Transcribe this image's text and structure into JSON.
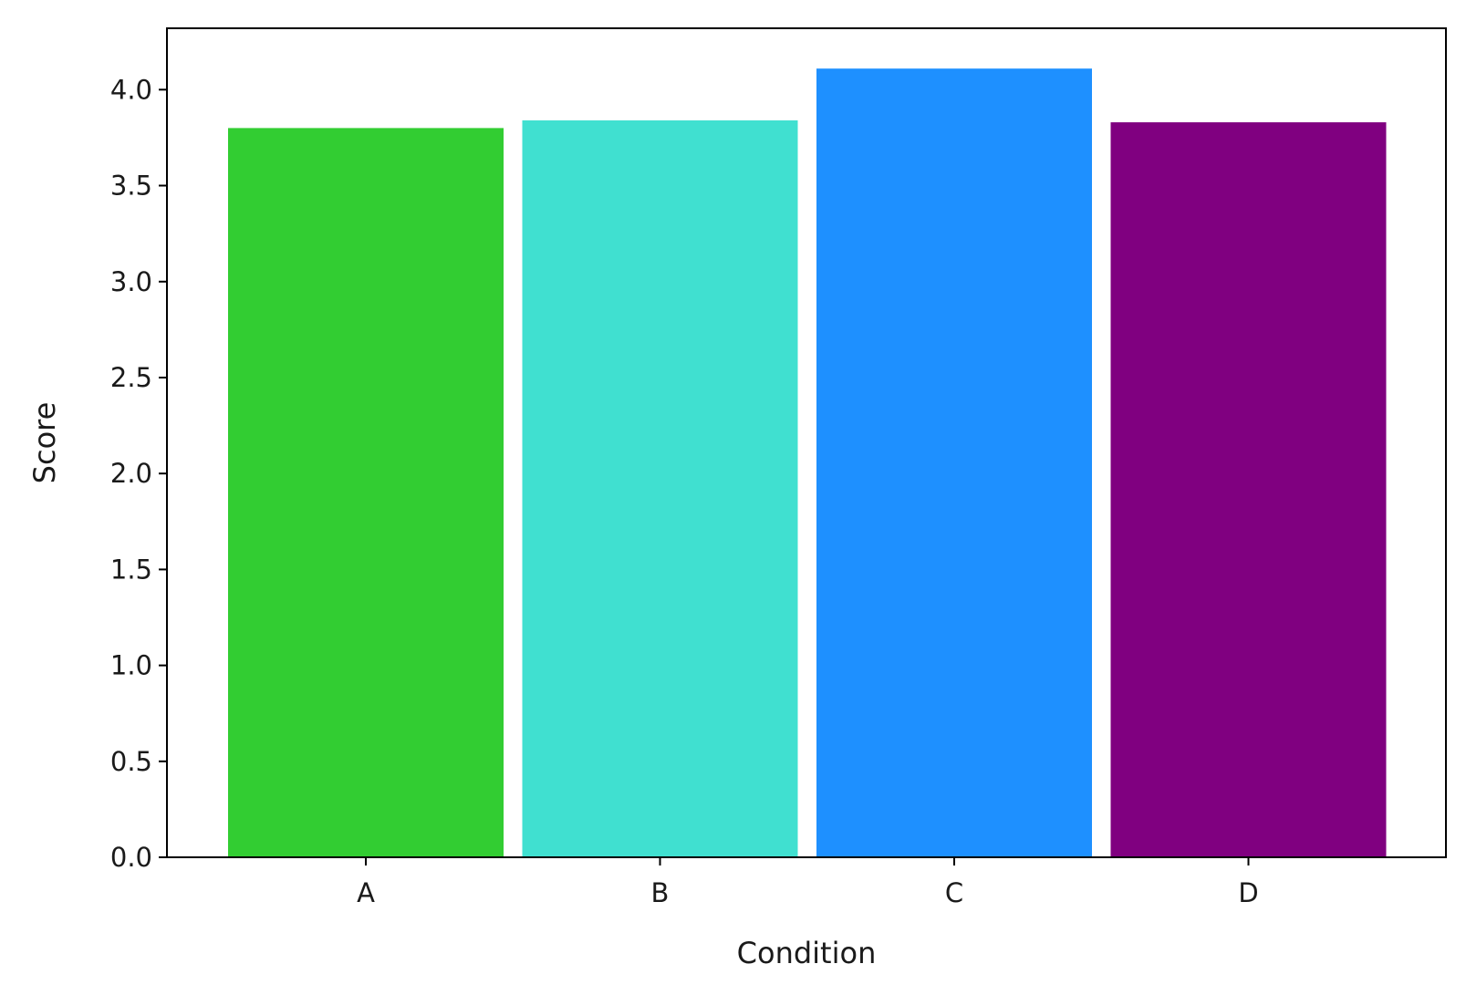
{
  "chart_data": {
    "type": "bar",
    "title": "",
    "xlabel": "Condition",
    "ylabel": "Score",
    "categories": [
      "A",
      "B",
      "C",
      "D"
    ],
    "values": [
      3.8,
      3.84,
      4.11,
      3.83
    ],
    "colors": [
      "#32cd32",
      "#40e0d0",
      "#1e90ff",
      "#800080"
    ],
    "ylim": [
      0,
      4.32
    ],
    "yticks": [
      0.0,
      0.5,
      1.0,
      1.5,
      2.0,
      2.5,
      3.0,
      3.5,
      4.0
    ],
    "ytick_labels": [
      "0.0",
      "0.5",
      "1.0",
      "1.5",
      "2.0",
      "2.5",
      "3.0",
      "3.5",
      "4.0"
    ],
    "grid": false,
    "legend": "none"
  }
}
